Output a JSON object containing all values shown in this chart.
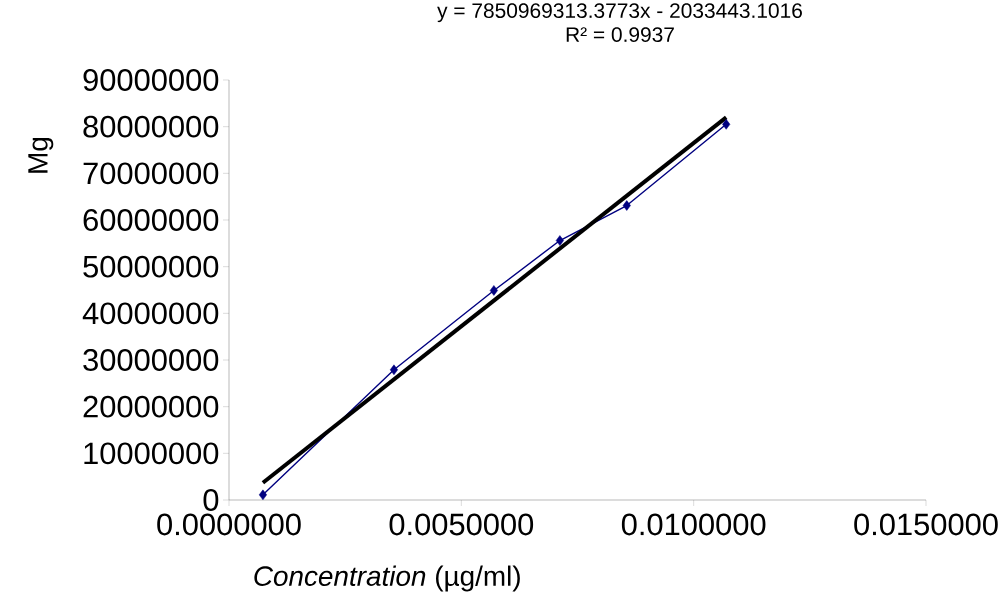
{
  "chart_data": {
    "type": "line",
    "xlabel": "*Concentration* (µg/ml)",
    "ylabel": "Mg",
    "annotations": [
      "y = 7850969313.3773x - 2033443.1016",
      "R² = 0.9937"
    ],
    "x": [
      0.00073,
      0.00355,
      0.0057,
      0.00712,
      0.00856,
      0.0107
    ],
    "series": [
      {
        "color": "#000080",
        "values": [
          1100000,
          27900000,
          44900000,
          55600000,
          63100000,
          80500000
        ],
        "marker": "diamond"
      },
      {
        "color": "#000000",
        "type": "line",
        "x": [
          0.00073,
          0.0107
        ],
        "values": [
          3700000,
          82000000
        ],
        "marker": "none"
      }
    ],
    "xlim": [
      0,
      0.015
    ],
    "xticks": [
      {
        "value": 0,
        "label": "0.0000000"
      },
      {
        "value": 0.005,
        "label": "0.0050000"
      },
      {
        "value": 0.01,
        "label": "0.0100000"
      },
      {
        "value": 0.015,
        "label": "0.0150000"
      }
    ],
    "ylim": [
      0,
      90000000
    ],
    "yticks": [
      0,
      10000000,
      20000000,
      30000000,
      40000000,
      50000000,
      60000000,
      70000000,
      80000000,
      90000000
    ],
    "grid": false,
    "legend": false,
    "line_style": "solid"
  }
}
